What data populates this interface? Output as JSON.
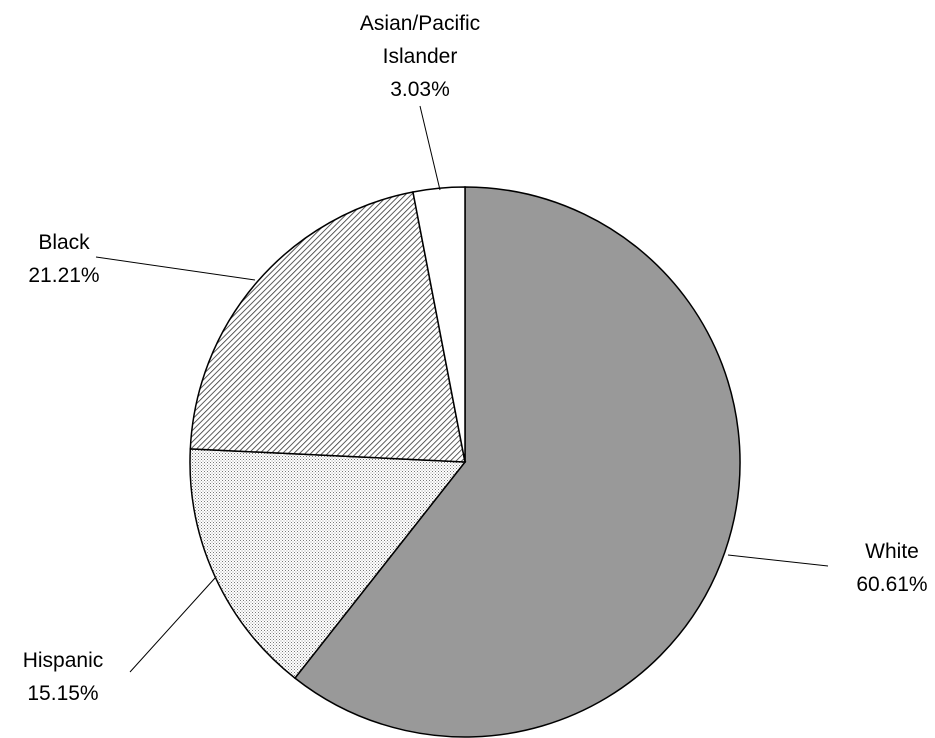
{
  "chart_data": {
    "type": "pie",
    "title": "",
    "slices": [
      {
        "name": "White",
        "label_lines": [
          "White"
        ],
        "percent_label": "60.61%",
        "value": 60.61,
        "fill": "#999999",
        "pattern": "solid"
      },
      {
        "name": "Hispanic",
        "label_lines": [
          "Hispanic"
        ],
        "percent_label": "15.15%",
        "value": 15.15,
        "fill": "#ffffff",
        "pattern": "fine-dots"
      },
      {
        "name": "Black",
        "label_lines": [
          "Black"
        ],
        "percent_label": "21.21%",
        "value": 21.21,
        "fill": "#ffffff",
        "pattern": "diagonal-hatch"
      },
      {
        "name": "Asian/Pacific Islander",
        "label_lines": [
          "Asian/Pacific",
          "Islander"
        ],
        "percent_label": "3.03%",
        "value": 3.03,
        "fill": "#ffffff",
        "pattern": "solid"
      }
    ],
    "start_angle": "12 o'clock",
    "direction": "clockwise",
    "legend": "none",
    "data_labels": "outside with leader lines"
  }
}
